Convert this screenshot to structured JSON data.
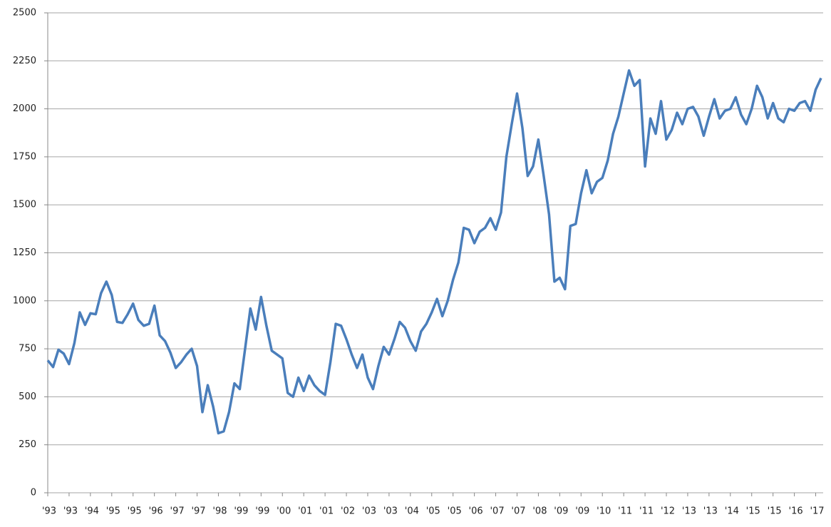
{
  "chart_data": {
    "type": "line",
    "categories": [
      "'93",
      null,
      null,
      null,
      "'93",
      null,
      null,
      null,
      "'94",
      null,
      null,
      null,
      "'95",
      null,
      null,
      null,
      "'95",
      null,
      null,
      null,
      "'96",
      null,
      null,
      null,
      "'97",
      null,
      null,
      null,
      "'97",
      null,
      null,
      null,
      "'98",
      null,
      null,
      null,
      "'99",
      null,
      null,
      null,
      "'99",
      null,
      null,
      null,
      "'00",
      null,
      null,
      null,
      "'01",
      null,
      null,
      null,
      "'01",
      null,
      null,
      null,
      "'02",
      null,
      null,
      null,
      "'03",
      null,
      null,
      null,
      "'03",
      null,
      null,
      null,
      "'04",
      null,
      null,
      null,
      "'05",
      null,
      null,
      null,
      "'05",
      null,
      null,
      null,
      "'06",
      null,
      null,
      null,
      "'07",
      null,
      null,
      null,
      "'07",
      null,
      null,
      null,
      "'08",
      null,
      null,
      null,
      "'09",
      null,
      null,
      null,
      "'09",
      null,
      null,
      null,
      "'10",
      null,
      null,
      null,
      "'11",
      null,
      null,
      null,
      "'11",
      null,
      null,
      null,
      "'12",
      null,
      null,
      null,
      "'13",
      null,
      null,
      null,
      "'13",
      null,
      null,
      null,
      "'14",
      null,
      null,
      null,
      "'15",
      null,
      null,
      null,
      "'15",
      null,
      null,
      null,
      "'16",
      null,
      null,
      null,
      "'17",
      null
    ],
    "series": [
      {
        "color": "#4a7ebb",
        "values": [
          690,
          655,
          745,
          725,
          670,
          780,
          940,
          875,
          935,
          930,
          1040,
          1100,
          1030,
          890,
          885,
          930,
          985,
          900,
          870,
          880,
          975,
          820,
          790,
          730,
          650,
          680,
          720,
          750,
          660,
          420,
          560,
          450,
          310,
          320,
          420,
          570,
          540,
          750,
          960,
          850,
          1020,
          870,
          740,
          720,
          700,
          520,
          500,
          600,
          530,
          610,
          560,
          530,
          510,
          680,
          880,
          870,
          800,
          720,
          650,
          720,
          600,
          540,
          660,
          760,
          720,
          800,
          890,
          860,
          790,
          740,
          840,
          880,
          940,
          1010,
          920,
          1000,
          1110,
          1200,
          1380,
          1370,
          1300,
          1360,
          1380,
          1430,
          1370,
          1460,
          1750,
          1920,
          2080,
          1900,
          1650,
          1700,
          1840,
          1650,
          1450,
          1100,
          1120,
          1060,
          1390,
          1400,
          1560,
          1680,
          1560,
          1620,
          1640,
          1730,
          1870,
          1960,
          2080,
          2200,
          2120,
          2150,
          1700,
          1950,
          1870,
          2040,
          1840,
          1890,
          1980,
          1920,
          2000,
          2010,
          1960,
          1860,
          1960,
          2050,
          1950,
          1990,
          2000,
          2060,
          1970,
          1920,
          2000,
          2120,
          2060,
          1950,
          2030,
          1950,
          1930,
          2000,
          1990,
          2030,
          2040,
          1990,
          2100,
          2160
        ]
      }
    ],
    "ylim": [
      0,
      2500
    ],
    "yticks": [
      0,
      250,
      500,
      750,
      1000,
      1250,
      1500,
      1750,
      2000,
      2250,
      2500
    ],
    "grid": true
  }
}
